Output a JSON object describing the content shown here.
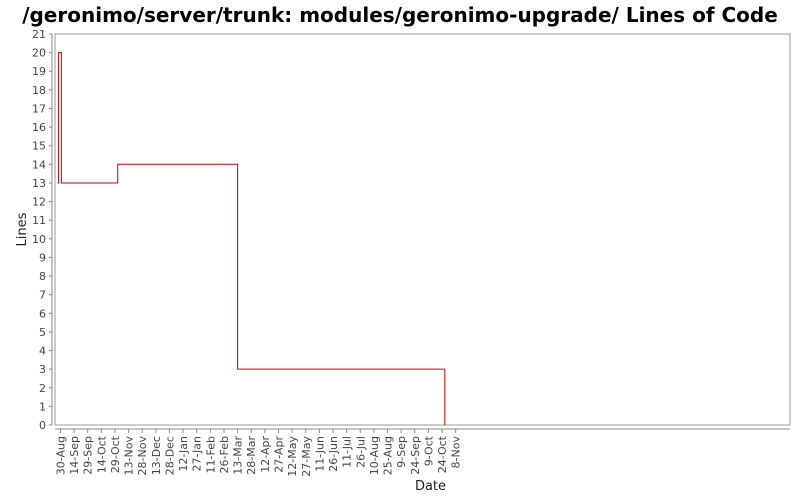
{
  "chart_data": {
    "type": "line",
    "title": "/geronimo/server/trunk: modules/geronimo-upgrade/ Lines of Code",
    "xlabel": "Date",
    "ylabel": "Lines",
    "ylim": [
      0,
      21
    ],
    "xlim": [
      "2006-08-24",
      "2008-11-10"
    ],
    "y_ticks": [
      0,
      1,
      2,
      3,
      4,
      5,
      6,
      7,
      8,
      9,
      10,
      11,
      12,
      13,
      14,
      15,
      16,
      17,
      18,
      19,
      20,
      21
    ],
    "x_ticks": [
      {
        "date": "2006-08-30",
        "label": "30-Aug"
      },
      {
        "date": "2006-09-14",
        "label": "14-Sep"
      },
      {
        "date": "2006-09-29",
        "label": "29-Sep"
      },
      {
        "date": "2006-10-14",
        "label": "14-Oct"
      },
      {
        "date": "2006-10-29",
        "label": "29-Oct"
      },
      {
        "date": "2006-11-13",
        "label": "13-Nov"
      },
      {
        "date": "2006-11-28",
        "label": "28-Nov"
      },
      {
        "date": "2006-12-13",
        "label": "13-Dec"
      },
      {
        "date": "2006-12-28",
        "label": "28-Dec"
      },
      {
        "date": "2007-01-12",
        "label": "12-Jan"
      },
      {
        "date": "2007-01-27",
        "label": "27-Jan"
      },
      {
        "date": "2007-02-11",
        "label": "11-Feb"
      },
      {
        "date": "2007-02-26",
        "label": "26-Feb"
      },
      {
        "date": "2007-03-13",
        "label": "13-Mar"
      },
      {
        "date": "2007-03-28",
        "label": "28-Mar"
      },
      {
        "date": "2007-04-12",
        "label": "12-Apr"
      },
      {
        "date": "2007-04-27",
        "label": "27-Apr"
      },
      {
        "date": "2007-05-12",
        "label": "12-May"
      },
      {
        "date": "2007-05-27",
        "label": "27-May"
      },
      {
        "date": "2007-06-11",
        "label": "11-Jun"
      },
      {
        "date": "2007-06-26",
        "label": "26-Jun"
      },
      {
        "date": "2007-07-11",
        "label": "11-Jul"
      },
      {
        "date": "2007-07-26",
        "label": "26-Jul"
      },
      {
        "date": "2007-08-10",
        "label": "10-Aug"
      },
      {
        "date": "2007-08-25",
        "label": "25-Aug"
      },
      {
        "date": "2007-09-09",
        "label": "9-Sep"
      },
      {
        "date": "2007-09-24",
        "label": "24-Sep"
      },
      {
        "date": "2007-10-09",
        "label": "9-Oct"
      },
      {
        "date": "2007-10-24",
        "label": "24-Oct"
      },
      {
        "date": "2007-11-08",
        "label": "8-Nov"
      }
    ],
    "step": true,
    "grid": false,
    "series": [
      {
        "color": "#cc0000",
        "points": [
          {
            "x": "2006-08-27",
            "y": 13
          },
          {
            "x": "2006-08-28",
            "y": 20
          },
          {
            "x": "2006-08-31",
            "y": 13
          },
          {
            "x": "2006-11-01",
            "y": 14
          },
          {
            "x": "2007-03-13",
            "y": 3
          },
          {
            "x": "2007-10-27",
            "y": 0
          }
        ]
      }
    ]
  }
}
